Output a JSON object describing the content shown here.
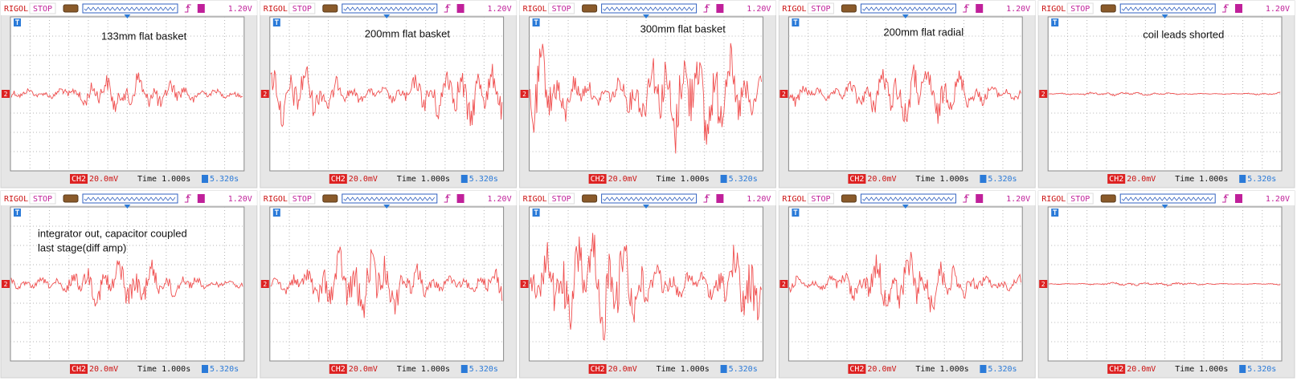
{
  "panels": [
    {
      "brand": "RIGOL",
      "status": "STOP",
      "trigger_level": "1.20V",
      "channel_marker": "2",
      "channel": "CH2",
      "scale": "20.0mV",
      "time": "Time 1.000s",
      "offset": "5.320s",
      "label_lines": [
        "133mm flat basket"
      ]
    },
    {
      "brand": "RIGOL",
      "status": "STOP",
      "trigger_level": "1.20V",
      "channel_marker": "2",
      "channel": "CH2",
      "scale": "20.0mV",
      "time": "Time 1.000s",
      "offset": "5.320s",
      "label_lines": [
        "200mm flat basket"
      ]
    },
    {
      "brand": "RIGOL",
      "status": "STOP",
      "trigger_level": "1.20V",
      "channel_marker": "2",
      "channel": "CH2",
      "scale": "20.0mV",
      "time": "Time 1.000s",
      "offset": "5.320s",
      "label_lines": [
        "300mm flat basket"
      ]
    },
    {
      "brand": "RIGOL",
      "status": "STOP",
      "trigger_level": "1.20V",
      "channel_marker": "2",
      "channel": "CH2",
      "scale": "20.0mV",
      "time": "Time 1.000s",
      "offset": "5.320s",
      "label_lines": [
        "200mm flat radial"
      ]
    },
    {
      "brand": "RIGOL",
      "status": "STOP",
      "trigger_level": "1.20V",
      "channel_marker": "2",
      "channel": "CH2",
      "scale": "20.0mV",
      "time": "Time 1.000s",
      "offset": "5.320s",
      "label_lines": [
        "coil leads shorted"
      ]
    },
    {
      "brand": "RIGOL",
      "status": "STOP",
      "trigger_level": "1.20V",
      "channel_marker": "2",
      "channel": "CH2",
      "scale": "20.0mV",
      "time": "Time 1.000s",
      "offset": "5.320s",
      "label_lines": [
        "integrator out, capacitor coupled",
        "last stage(diff amp)"
      ]
    },
    {
      "brand": "RIGOL",
      "status": "STOP",
      "trigger_level": "1.20V",
      "channel_marker": "2",
      "channel": "CH2",
      "scale": "20.0mV",
      "time": "Time 1.000s",
      "offset": "5.320s"
    },
    {
      "brand": "RIGOL",
      "status": "STOP",
      "trigger_level": "1.20V",
      "channel_marker": "2",
      "channel": "CH2",
      "scale": "20.0mV",
      "time": "Time 1.000s",
      "offset": "5.320s"
    },
    {
      "brand": "RIGOL",
      "status": "STOP",
      "trigger_level": "1.20V",
      "channel_marker": "2",
      "channel": "CH2",
      "scale": "20.0mV",
      "time": "Time 1.000s",
      "offset": "5.320s"
    },
    {
      "brand": "RIGOL",
      "status": "STOP",
      "trigger_level": "1.20V",
      "channel_marker": "2",
      "channel": "CH2",
      "scale": "20.0mV",
      "time": "Time 1.000s",
      "offset": "5.320s"
    }
  ]
}
